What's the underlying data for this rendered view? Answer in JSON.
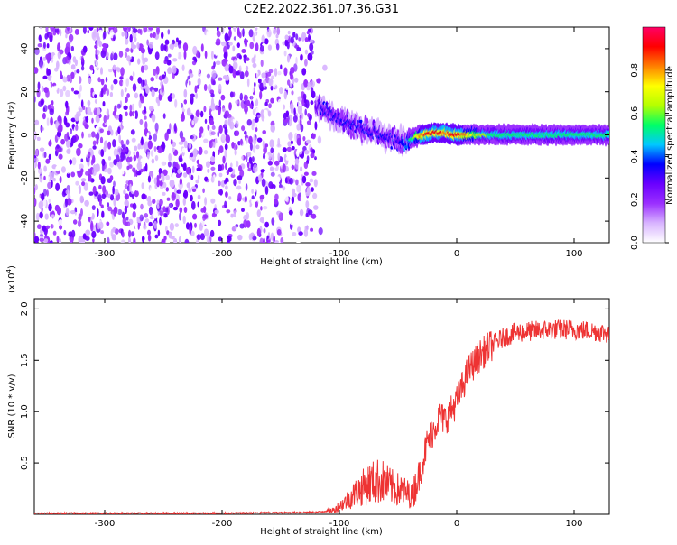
{
  "title": "C2E2.2022.361.07.36.G31",
  "chart_data": [
    {
      "type": "heatmap",
      "xlabel": "Height of straight line (km)",
      "ylabel": "Frequency (Hz)",
      "xlim": [
        -360,
        130
      ],
      "ylim": [
        -50,
        50
      ],
      "xticks": [
        -300,
        -200,
        -100,
        0,
        100
      ],
      "yticks": [
        -40,
        -20,
        0,
        20,
        40
      ],
      "colorbar": {
        "label": "Normalized spectral amplitude",
        "range": [
          0,
          1
        ],
        "ticks": [
          0.0,
          0.2,
          0.4,
          0.6,
          0.8
        ],
        "colormap": [
          "#ffffff",
          "#d8b4ff",
          "#9b30ff",
          "#6a00ff",
          "#0000ff",
          "#00c8ff",
          "#00ff66",
          "#b4ff00",
          "#ffff00",
          "#ff8000",
          "#ff0000",
          "#ff0066"
        ]
      },
      "noise_region": {
        "x_from": -360,
        "x_to": -120,
        "freq_range": [
          -50,
          50
        ]
      },
      "signal_track": [
        {
          "x": -120,
          "freq": 14,
          "amp": 0.3
        },
        {
          "x": -110,
          "freq": 11,
          "amp": 0.35
        },
        {
          "x": -100,
          "freq": 7,
          "amp": 0.35
        },
        {
          "x": -90,
          "freq": 5,
          "amp": 0.35
        },
        {
          "x": -80,
          "freq": 3,
          "amp": 0.35
        },
        {
          "x": -70,
          "freq": 1,
          "amp": 0.35
        },
        {
          "x": -60,
          "freq": -1,
          "amp": 0.35
        },
        {
          "x": -50,
          "freq": -3,
          "amp": 0.35
        },
        {
          "x": -40,
          "freq": -2,
          "amp": 0.5
        },
        {
          "x": -30,
          "freq": 0,
          "amp": 0.85
        },
        {
          "x": -20,
          "freq": 1,
          "amp": 0.9
        },
        {
          "x": -10,
          "freq": 1,
          "amp": 0.85
        },
        {
          "x": 0,
          "freq": 0,
          "amp": 0.9
        },
        {
          "x": 20,
          "freq": 0,
          "amp": 0.6
        },
        {
          "x": 50,
          "freq": 0,
          "amp": 0.55
        },
        {
          "x": 80,
          "freq": 0,
          "amp": 0.55
        },
        {
          "x": 110,
          "freq": 0,
          "amp": 0.55
        },
        {
          "x": 130,
          "freq": 0,
          "amp": 0.55
        }
      ]
    },
    {
      "type": "line",
      "xlabel": "Height of straight line (km)",
      "ylabel": "SNR (10 * v/v)",
      "y_multiplier": "(x10",
      "y_multiplier_exp": "4",
      "xlim": [
        -360,
        130
      ],
      "ylim": [
        0,
        2.1
      ],
      "xticks": [
        -300,
        -200,
        -100,
        0,
        100
      ],
      "yticks": [
        0.5,
        1.0,
        1.5,
        2.0
      ],
      "color": "#ee3333",
      "x": [
        -360,
        -300,
        -200,
        -120,
        -105,
        -95,
        -85,
        -75,
        -65,
        -55,
        -45,
        -38,
        -32,
        -25,
        -20,
        -15,
        -10,
        -5,
        0,
        5,
        10,
        20,
        30,
        40,
        50,
        60,
        80,
        100,
        120,
        130
      ],
      "series": [
        {
          "values": [
            0.01,
            0.01,
            0.01,
            0.02,
            0.04,
            0.12,
            0.22,
            0.3,
            0.33,
            0.26,
            0.22,
            0.18,
            0.38,
            0.7,
            0.82,
            0.95,
            0.92,
            1.0,
            1.1,
            1.25,
            1.4,
            1.55,
            1.65,
            1.72,
            1.77,
            1.78,
            1.8,
            1.8,
            1.78,
            1.76
          ]
        }
      ]
    }
  ]
}
